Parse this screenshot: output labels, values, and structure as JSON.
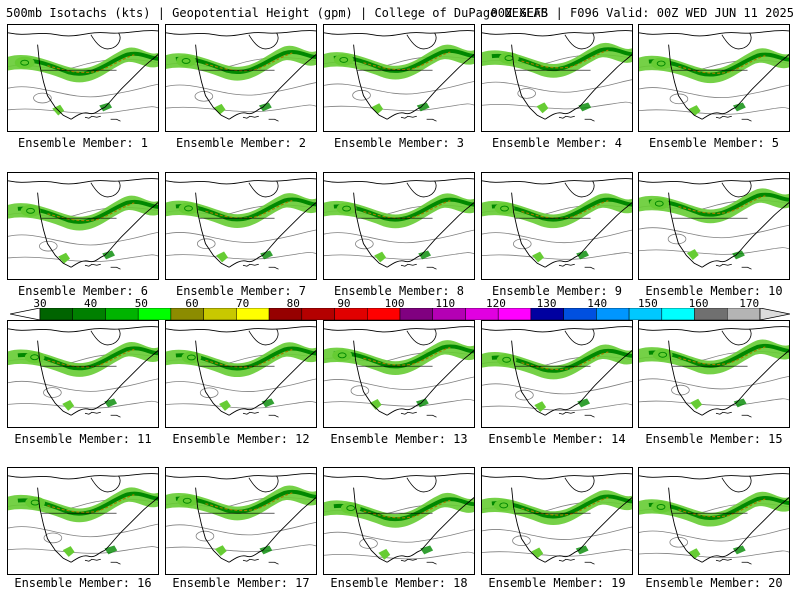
{
  "header": {
    "left": "500mb Isotachs (kts) | Geopotential Height (gpm) | College of DuPage NEXLAB",
    "right": "00Z GEFS | F096 Valid: 00Z WED JUN 11 2025"
  },
  "members": [
    {
      "label": "Ensemble Member: 1"
    },
    {
      "label": "Ensemble Member: 2"
    },
    {
      "label": "Ensemble Member: 3"
    },
    {
      "label": "Ensemble Member: 4"
    },
    {
      "label": "Ensemble Member: 5"
    },
    {
      "label": "Ensemble Member: 6"
    },
    {
      "label": "Ensemble Member: 7"
    },
    {
      "label": "Ensemble Member: 8"
    },
    {
      "label": "Ensemble Member: 9"
    },
    {
      "label": "Ensemble Member: 10"
    },
    {
      "label": "Ensemble Member: 11"
    },
    {
      "label": "Ensemble Member: 12"
    },
    {
      "label": "Ensemble Member: 13"
    },
    {
      "label": "Ensemble Member: 14"
    },
    {
      "label": "Ensemble Member: 15"
    },
    {
      "label": "Ensemble Member: 16"
    },
    {
      "label": "Ensemble Member: 17"
    },
    {
      "label": "Ensemble Member: 18"
    },
    {
      "label": "Ensemble Member: 19"
    },
    {
      "label": "Ensemble Member: 20"
    }
  ],
  "colorbar": {
    "ticks": [
      "30",
      "40",
      "50",
      "60",
      "70",
      "80",
      "90",
      "100",
      "110",
      "120",
      "130",
      "140",
      "150",
      "160",
      "170"
    ],
    "colors": [
      "#006400",
      "#008000",
      "#00b400",
      "#00ff00",
      "#8c8c00",
      "#c8c800",
      "#ffff00",
      "#960000",
      "#b40000",
      "#e10000",
      "#ff0000",
      "#800080",
      "#b400b4",
      "#e100e1",
      "#ff00ff",
      "#0000a0",
      "#0050e0",
      "#0096ff",
      "#00c8ff",
      "#00ffff",
      "#707070",
      "#b4b4b4"
    ]
  },
  "map_colors": {
    "jet_light": "#66cc33",
    "jet_mid": "#008800",
    "jet_core": "#a08000",
    "contour": "#808080",
    "coast": "#000000"
  }
}
